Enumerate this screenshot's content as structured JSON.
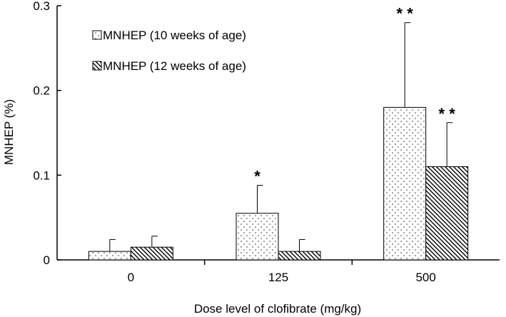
{
  "chart_data": {
    "type": "bar",
    "title": "",
    "xlabel": "Dose level of clofibrate (mg/kg)",
    "ylabel": "MNHEP (%)",
    "categories": [
      "0",
      "125",
      "500"
    ],
    "ylim": [
      0,
      0.3
    ],
    "yticks": [
      {
        "value": 0,
        "label": "0"
      },
      {
        "value": 0.1,
        "label": "0.1"
      },
      {
        "value": 0.2,
        "label": "0.2"
      },
      {
        "value": 0.3,
        "label": "0.3"
      }
    ],
    "series": [
      {
        "name": "MNHEP (10 weeks of age)",
        "pattern": "dots",
        "values": [
          0.01,
          0.055,
          0.18
        ],
        "error": [
          0.014,
          0.033,
          0.1
        ],
        "significance": [
          "",
          "*",
          "**"
        ]
      },
      {
        "name": "MNHEP (12 weeks of age)",
        "pattern": "hatch",
        "values": [
          0.015,
          0.01,
          0.11
        ],
        "error": [
          0.013,
          0.014,
          0.052
        ],
        "significance": [
          "",
          "",
          "**"
        ]
      }
    ],
    "legend_position": "top-left",
    "grid": false
  }
}
